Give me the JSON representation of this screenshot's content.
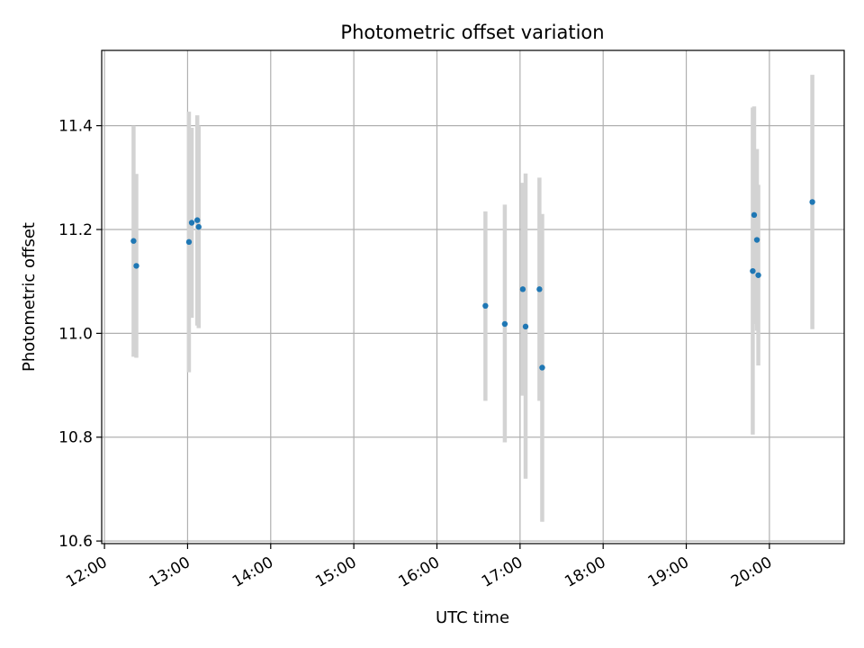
{
  "chart_data": {
    "type": "scatter",
    "title": "Photometric offset variation",
    "xlabel": "UTC time",
    "ylabel": "Photometric offset",
    "x_unit": "UTC time (HH:MM)",
    "xlim": [
      "11:58",
      "20:54"
    ],
    "ylim": [
      10.595,
      11.545
    ],
    "grid": true,
    "legend": "none",
    "x_ticks": [
      "12:00",
      "13:00",
      "14:00",
      "15:00",
      "16:00",
      "17:00",
      "18:00",
      "19:00",
      "20:00"
    ],
    "y_ticks": [
      10.6,
      10.8,
      11.0,
      11.2,
      11.4
    ],
    "y_tick_labels": [
      "10.6",
      "10.8",
      "11.0",
      "11.2",
      "11.4"
    ],
    "colors": {
      "points": "#1f77b4",
      "errorbars": "#d3d3d3",
      "grid": "#b0b0b0"
    },
    "points": [
      {
        "x": "12:21",
        "y": 11.178,
        "ylow": 10.955,
        "yhigh": 11.4
      },
      {
        "x": "12:23",
        "y": 11.13,
        "ylow": 10.953,
        "yhigh": 11.307
      },
      {
        "x": "13:01",
        "y": 11.176,
        "ylow": 10.925,
        "yhigh": 11.427
      },
      {
        "x": "13:03",
        "y": 11.213,
        "ylow": 11.03,
        "yhigh": 11.396
      },
      {
        "x": "13:07",
        "y": 11.218,
        "ylow": 11.015,
        "yhigh": 11.42
      },
      {
        "x": "13:08",
        "y": 11.205,
        "ylow": 11.01,
        "yhigh": 11.4
      },
      {
        "x": "16:35",
        "y": 11.053,
        "ylow": 10.87,
        "yhigh": 11.235
      },
      {
        "x": "16:49",
        "y": 11.018,
        "ylow": 10.79,
        "yhigh": 11.248
      },
      {
        "x": "17:02",
        "y": 11.085,
        "ylow": 10.88,
        "yhigh": 11.29
      },
      {
        "x": "17:04",
        "y": 11.013,
        "ylow": 10.72,
        "yhigh": 11.308
      },
      {
        "x": "17:14",
        "y": 11.085,
        "ylow": 10.87,
        "yhigh": 11.3
      },
      {
        "x": "17:16",
        "y": 10.934,
        "ylow": 10.637,
        "yhigh": 11.23
      },
      {
        "x": "19:48",
        "y": 11.12,
        "ylow": 10.805,
        "yhigh": 11.435
      },
      {
        "x": "19:49",
        "y": 11.228,
        "ylow": 11.018,
        "yhigh": 11.437
      },
      {
        "x": "19:51",
        "y": 11.18,
        "ylow": 11.005,
        "yhigh": 11.355
      },
      {
        "x": "19:52",
        "y": 11.112,
        "ylow": 10.938,
        "yhigh": 11.286
      },
      {
        "x": "20:31",
        "y": 11.253,
        "ylow": 11.008,
        "yhigh": 11.498
      }
    ]
  }
}
